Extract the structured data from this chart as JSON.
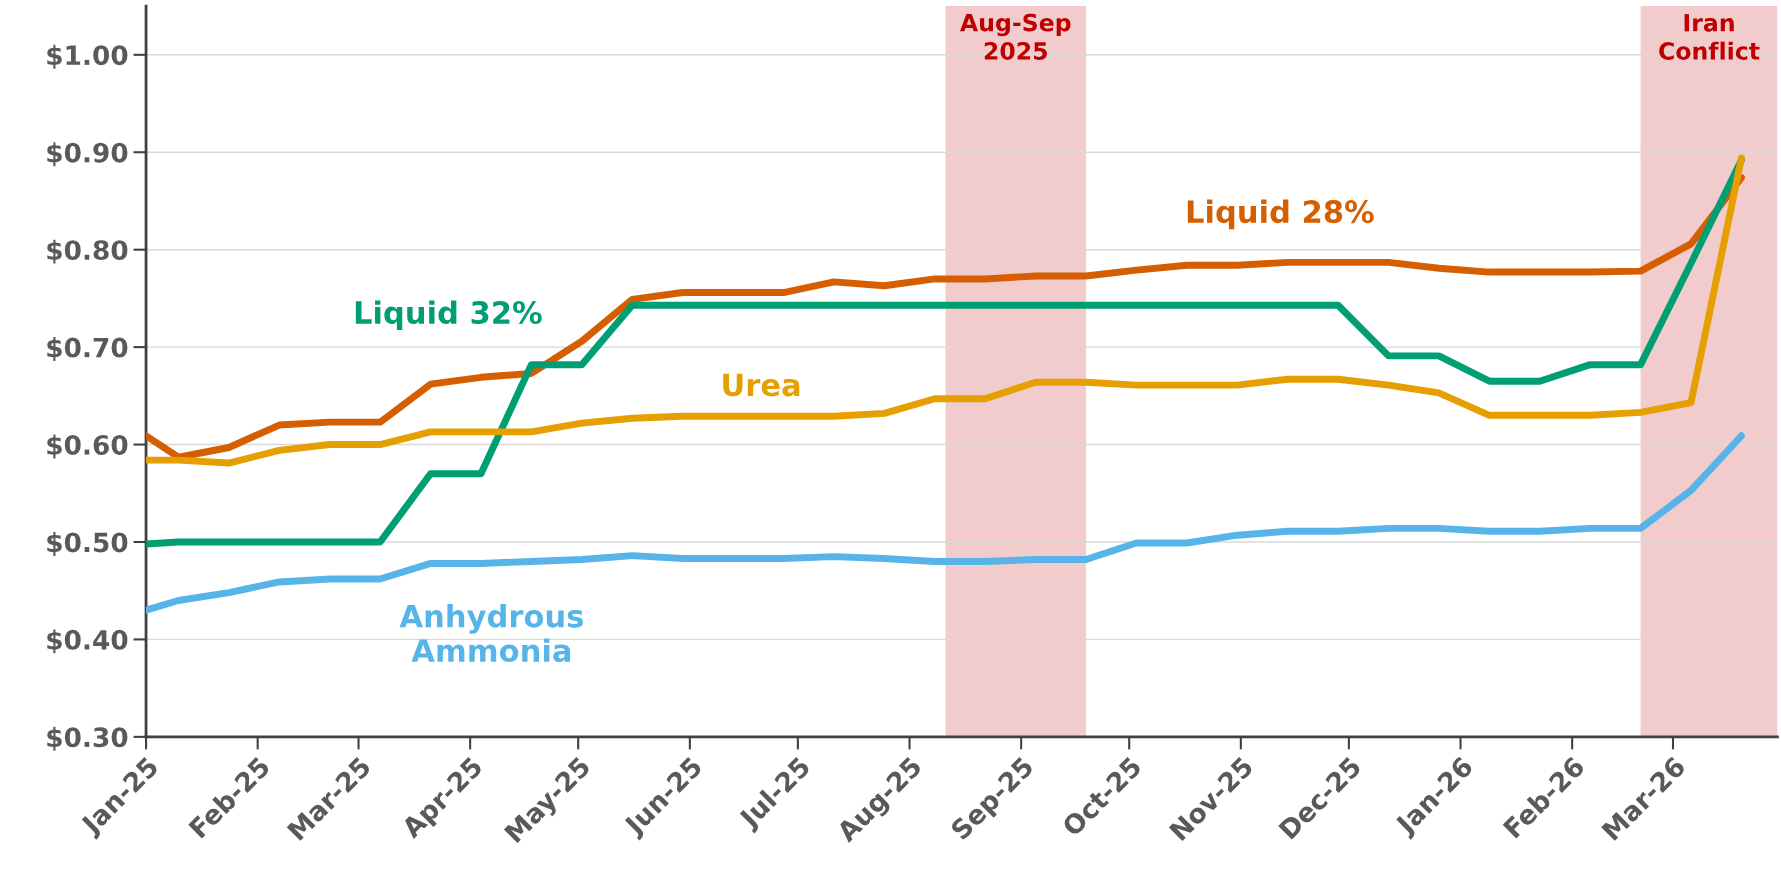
{
  "chart_data": {
    "type": "line",
    "x": [
      "2025-01-01",
      "2025-01-10",
      "2025-01-24",
      "2025-02-07",
      "2025-02-21",
      "2025-03-07",
      "2025-03-21",
      "2025-04-04",
      "2025-04-18",
      "2025-05-02",
      "2025-05-16",
      "2025-05-30",
      "2025-06-13",
      "2025-06-27",
      "2025-07-11",
      "2025-07-25",
      "2025-08-08",
      "2025-08-22",
      "2025-09-05",
      "2025-09-19",
      "2025-10-03",
      "2025-10-17",
      "2025-10-31",
      "2025-11-14",
      "2025-11-28",
      "2025-12-12",
      "2025-12-26",
      "2026-01-09",
      "2026-01-23",
      "2026-02-06",
      "2026-02-20",
      "2026-03-06",
      "2026-03-20"
    ],
    "series": [
      {
        "name": "Liquid 28%",
        "color": "#d55e00",
        "values": [
          0.609,
          0.587,
          0.597,
          0.62,
          0.623,
          0.623,
          0.662,
          0.669,
          0.673,
          0.706,
          0.749,
          0.756,
          0.756,
          0.756,
          0.767,
          0.763,
          0.77,
          0.77,
          0.773,
          0.773,
          0.779,
          0.784,
          0.784,
          0.787,
          0.787,
          0.787,
          0.781,
          0.777,
          0.777,
          0.777,
          0.778,
          0.806,
          0.874
        ]
      },
      {
        "name": "Liquid 32%",
        "color": "#009e73",
        "values": [
          0.498,
          0.5,
          0.5,
          0.5,
          0.5,
          0.5,
          0.57,
          0.57,
          0.682,
          0.682,
          0.743,
          0.743,
          0.743,
          0.743,
          0.743,
          0.743,
          0.743,
          0.743,
          0.743,
          0.743,
          0.743,
          0.743,
          0.743,
          0.743,
          0.743,
          0.691,
          0.691,
          0.665,
          0.665,
          0.682,
          0.682,
          0.786,
          0.892
        ]
      },
      {
        "name": "Urea",
        "color": "#e69f00",
        "values": [
          0.584,
          0.584,
          0.581,
          0.594,
          0.6,
          0.6,
          0.613,
          0.613,
          0.613,
          0.622,
          0.627,
          0.629,
          0.629,
          0.629,
          0.629,
          0.632,
          0.647,
          0.647,
          0.664,
          0.664,
          0.661,
          0.661,
          0.661,
          0.667,
          0.667,
          0.661,
          0.653,
          0.63,
          0.63,
          0.63,
          0.633,
          0.643,
          0.894
        ]
      },
      {
        "name": "Anhydrous\nAmmonia",
        "color": "#56b4e9",
        "values": [
          0.43,
          0.44,
          0.448,
          0.459,
          0.462,
          0.462,
          0.478,
          0.478,
          0.48,
          0.482,
          0.486,
          0.483,
          0.483,
          0.483,
          0.485,
          0.483,
          0.48,
          0.48,
          0.482,
          0.482,
          0.499,
          0.499,
          0.507,
          0.511,
          0.511,
          0.514,
          0.514,
          0.511,
          0.511,
          0.514,
          0.514,
          0.553,
          0.609
        ]
      }
    ],
    "xlim": [
      "2025-01-01",
      "2026-03-30"
    ],
    "xticks": [
      {
        "value": "2025-01-01",
        "label": "Jan-25"
      },
      {
        "value": "2025-02-01",
        "label": "Feb-25"
      },
      {
        "value": "2025-03-01",
        "label": "Mar-25"
      },
      {
        "value": "2025-04-01",
        "label": "Apr-25"
      },
      {
        "value": "2025-05-01",
        "label": "May-25"
      },
      {
        "value": "2025-06-01",
        "label": "Jun-25"
      },
      {
        "value": "2025-07-01",
        "label": "Jul-25"
      },
      {
        "value": "2025-08-01",
        "label": "Aug-25"
      },
      {
        "value": "2025-09-01",
        "label": "Sep-25"
      },
      {
        "value": "2025-10-01",
        "label": "Oct-25"
      },
      {
        "value": "2025-11-01",
        "label": "Nov-25"
      },
      {
        "value": "2025-12-01",
        "label": "Dec-25"
      },
      {
        "value": "2026-01-01",
        "label": "Jan-26"
      },
      {
        "value": "2026-02-01",
        "label": "Feb-26"
      },
      {
        "value": "2026-03-01",
        "label": "Mar-26"
      }
    ],
    "ylim": [
      0.3,
      1.05
    ],
    "yticks": [
      {
        "value": 0.3,
        "label": "$0.30"
      },
      {
        "value": 0.4,
        "label": "$0.40"
      },
      {
        "value": 0.5,
        "label": "$0.50"
      },
      {
        "value": 0.6,
        "label": "$0.60"
      },
      {
        "value": 0.7,
        "label": "$0.70"
      },
      {
        "value": 0.8,
        "label": "$0.80"
      },
      {
        "value": 0.9,
        "label": "$0.90"
      },
      {
        "value": 1.0,
        "label": "$1.00"
      }
    ],
    "bands": [
      {
        "axis": "x",
        "from": "2025-08-11",
        "to": "2025-09-19",
        "label": "Aug-Sep\n2025",
        "color": "#f2cccc"
      },
      {
        "axis": "x",
        "from": "2026-02-20",
        "to": "2026-03-30",
        "label": "Iran\nConflict",
        "color": "#f2cccc"
      }
    ],
    "grid": "y",
    "legend": false,
    "marker": "none",
    "line_style": "solid"
  }
}
